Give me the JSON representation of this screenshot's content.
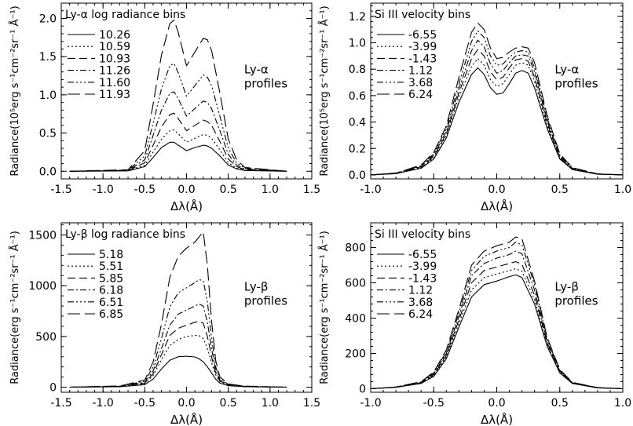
{
  "chart_data": [
    {
      "type": "line",
      "title": "Ly-α log radiance bins",
      "xlabel": "Δλ(Å)",
      "ylabel": "Radiance(10⁵erg s⁻¹cm⁻²sr⁻¹ Å⁻¹)",
      "annotation": [
        "Ly-α",
        "profiles"
      ],
      "xlim": [
        -1.5,
        1.5
      ],
      "ylim": [
        -0.1,
        2.2
      ],
      "xticks": [
        -1.5,
        -1.0,
        -0.5,
        0.0,
        0.5,
        1.0,
        1.5
      ],
      "xtick_labels": [
        "-1.5",
        "-1.0",
        "-0.5",
        "0.0",
        "0.5",
        "1.0",
        "1.5"
      ],
      "yticks": [
        0.0,
        0.5,
        1.0,
        1.5,
        2.0
      ],
      "ytick_labels": [
        "0.0",
        "0.5",
        "1.0",
        "1.5",
        "2.0"
      ],
      "legend": "top-left",
      "x": [
        -1.4,
        -0.7,
        -0.5,
        -0.4,
        -0.3,
        -0.2,
        -0.15,
        -0.1,
        0.0,
        0.1,
        0.2,
        0.25,
        0.3,
        0.4,
        0.5,
        0.6,
        0.7,
        1.2
      ],
      "series": [
        {
          "name": "10.26",
          "values": [
            0.0,
            0.005,
            0.06,
            0.18,
            0.31,
            0.38,
            0.38,
            0.34,
            0.27,
            0.31,
            0.34,
            0.33,
            0.3,
            0.2,
            0.08,
            0.03,
            0.01,
            0.0
          ]
        },
        {
          "name": "10.59",
          "values": [
            0.0,
            0.008,
            0.08,
            0.25,
            0.42,
            0.53,
            0.54,
            0.49,
            0.38,
            0.43,
            0.48,
            0.47,
            0.43,
            0.28,
            0.11,
            0.04,
            0.015,
            0.0
          ]
        },
        {
          "name": "10.93",
          "values": [
            0.0,
            0.01,
            0.11,
            0.34,
            0.58,
            0.74,
            0.76,
            0.69,
            0.53,
            0.6,
            0.67,
            0.65,
            0.6,
            0.39,
            0.16,
            0.06,
            0.02,
            0.0
          ]
        },
        {
          "name": "11.26",
          "values": [
            0.0,
            0.012,
            0.15,
            0.47,
            0.8,
            1.02,
            1.04,
            0.95,
            0.72,
            0.82,
            0.92,
            0.9,
            0.82,
            0.53,
            0.22,
            0.08,
            0.03,
            0.0
          ]
        },
        {
          "name": "11.60",
          "values": [
            0.0,
            0.016,
            0.2,
            0.63,
            1.08,
            1.38,
            1.41,
            1.29,
            0.98,
            1.12,
            1.26,
            1.23,
            1.12,
            0.72,
            0.3,
            0.11,
            0.04,
            0.0
          ]
        },
        {
          "name": "11.93",
          "values": [
            0.0,
            0.02,
            0.27,
            0.88,
            1.52,
            1.93,
            1.98,
            1.82,
            1.38,
            1.56,
            1.74,
            1.72,
            1.58,
            1.02,
            0.42,
            0.15,
            0.05,
            0.0
          ]
        }
      ]
    },
    {
      "type": "line",
      "title": "Si III velocity bins",
      "xlabel": "Δλ(Å)",
      "ylabel": "Radiance(10⁵erg s⁻¹cm⁻²sr⁻¹ Å⁻¹)",
      "annotation": [
        "Ly-α",
        "profiles"
      ],
      "xlim": [
        -1.0,
        1.0
      ],
      "ylim": [
        -0.03,
        1.3
      ],
      "xticks": [
        -1.0,
        -0.5,
        0.0,
        0.5,
        1.0
      ],
      "xtick_labels": [
        "-1.0",
        "-0.5",
        "0.0",
        "0.5",
        "1.0"
      ],
      "yticks": [
        0.0,
        0.2,
        0.4,
        0.6,
        0.8,
        1.0,
        1.2
      ],
      "ytick_labels": [
        "0.0",
        "0.2",
        "0.4",
        "0.6",
        "0.8",
        "1.0",
        "1.2"
      ],
      "legend": "top-left",
      "x": [
        -1.0,
        -0.8,
        -0.6,
        -0.5,
        -0.4,
        -0.3,
        -0.2,
        -0.15,
        -0.1,
        -0.05,
        0.0,
        0.05,
        0.1,
        0.15,
        0.2,
        0.25,
        0.3,
        0.4,
        0.5,
        0.6,
        0.8,
        1.0
      ],
      "series": [
        {
          "name": "-6.55",
          "values": [
            0.0,
            0.01,
            0.05,
            0.12,
            0.28,
            0.55,
            0.76,
            0.81,
            0.76,
            0.66,
            0.61,
            0.62,
            0.69,
            0.77,
            0.79,
            0.77,
            0.66,
            0.35,
            0.12,
            0.04,
            0.005,
            0.0
          ]
        },
        {
          "name": "-3.99",
          "values": [
            0.0,
            0.01,
            0.055,
            0.13,
            0.3,
            0.59,
            0.82,
            0.88,
            0.83,
            0.72,
            0.67,
            0.69,
            0.76,
            0.83,
            0.85,
            0.83,
            0.71,
            0.37,
            0.13,
            0.045,
            0.006,
            0.0
          ]
        },
        {
          "name": "-1.43",
          "values": [
            0.0,
            0.011,
            0.06,
            0.14,
            0.31,
            0.62,
            0.88,
            0.95,
            0.9,
            0.78,
            0.72,
            0.74,
            0.81,
            0.87,
            0.88,
            0.86,
            0.74,
            0.39,
            0.13,
            0.045,
            0.006,
            0.0
          ]
        },
        {
          "name": "1.12",
          "values": [
            0.0,
            0.012,
            0.065,
            0.15,
            0.33,
            0.65,
            0.94,
            1.02,
            0.97,
            0.84,
            0.77,
            0.79,
            0.85,
            0.9,
            0.91,
            0.9,
            0.78,
            0.41,
            0.14,
            0.05,
            0.007,
            0.0
          ]
        },
        {
          "name": "3.68",
          "values": [
            0.0,
            0.013,
            0.07,
            0.16,
            0.35,
            0.69,
            1.01,
            1.09,
            1.04,
            0.9,
            0.83,
            0.84,
            0.89,
            0.93,
            0.94,
            0.93,
            0.81,
            0.43,
            0.15,
            0.05,
            0.007,
            0.0
          ]
        },
        {
          "name": "6.24",
          "values": [
            0.0,
            0.014,
            0.075,
            0.17,
            0.37,
            0.74,
            1.08,
            1.15,
            1.1,
            0.96,
            0.88,
            0.89,
            0.93,
            0.96,
            0.97,
            0.96,
            0.85,
            0.45,
            0.16,
            0.055,
            0.008,
            0.0
          ]
        }
      ]
    },
    {
      "type": "line",
      "title": "Ly-β log radiance bins",
      "xlabel": "Δλ(Å)",
      "ylabel": "Radiance(erg s⁻¹cm⁻²sr⁻¹ Å⁻¹)",
      "annotation": [
        "Ly-β",
        "profiles"
      ],
      "xlim": [
        -1.5,
        1.5
      ],
      "ylim": [
        -50,
        1620
      ],
      "xticks": [
        -1.5,
        -1.0,
        -0.5,
        0.0,
        0.5,
        1.0,
        1.5
      ],
      "xtick_labels": [
        "-1.5",
        "-1.0",
        "-0.5",
        "0.0",
        "0.5",
        "1.0",
        "1.5"
      ],
      "yticks": [
        0,
        500,
        1000,
        1500
      ],
      "ytick_labels": [
        "0",
        "500",
        "1000",
        "1500"
      ],
      "legend": "top-left",
      "x": [
        -1.4,
        -0.8,
        -0.5,
        -0.4,
        -0.3,
        -0.2,
        -0.1,
        0.0,
        0.1,
        0.15,
        0.2,
        0.25,
        0.3,
        0.35,
        0.4,
        0.5,
        0.7,
        1.2
      ],
      "series": [
        {
          "name": "5.18",
          "values": [
            0,
            5,
            25,
            80,
            180,
            265,
            300,
            305,
            298,
            280,
            250,
            200,
            140,
            80,
            40,
            15,
            5,
            0
          ]
        },
        {
          "name": "5.51",
          "values": [
            0,
            6,
            35,
            115,
            270,
            410,
            470,
            500,
            510,
            510,
            480,
            380,
            240,
            120,
            55,
            20,
            6,
            0
          ]
        },
        {
          "name": "5.85",
          "values": [
            0,
            7,
            40,
            135,
            320,
            510,
            580,
            610,
            640,
            650,
            630,
            500,
            300,
            140,
            60,
            22,
            7,
            0
          ]
        },
        {
          "name": "6.18",
          "values": [
            0,
            8,
            48,
            160,
            380,
            610,
            720,
            760,
            800,
            820,
            800,
            640,
            380,
            170,
            70,
            25,
            8,
            0
          ]
        },
        {
          "name": "6.51",
          "values": [
            0,
            10,
            58,
            200,
            480,
            790,
            930,
            980,
            1030,
            1060,
            1050,
            840,
            480,
            200,
            80,
            28,
            9,
            0
          ]
        },
        {
          "name": "6.85",
          "values": [
            0,
            12,
            70,
            250,
            620,
            1080,
            1290,
            1370,
            1430,
            1480,
            1530,
            1200,
            650,
            260,
            100,
            32,
            10,
            0
          ]
        }
      ]
    },
    {
      "type": "line",
      "title": "Si III velocity bins",
      "xlabel": "Δλ(Å)",
      "ylabel": "Radiance(erg s⁻¹cm⁻²sr⁻¹ Å⁻¹)",
      "annotation": [
        "Ly-β",
        "profiles"
      ],
      "xlim": [
        -1.0,
        1.0
      ],
      "ylim": [
        -20,
        940
      ],
      "xticks": [
        -1.0,
        -0.5,
        0.0,
        0.5,
        1.0
      ],
      "xtick_labels": [
        "-1.0",
        "-0.5",
        "0.0",
        "0.5",
        "1.0"
      ],
      "yticks": [
        0,
        200,
        400,
        600,
        800
      ],
      "ytick_labels": [
        "0",
        "200",
        "400",
        "600",
        "800"
      ],
      "legend": "top-left",
      "x": [
        -1.0,
        -0.8,
        -0.6,
        -0.5,
        -0.4,
        -0.3,
        -0.2,
        -0.1,
        0.0,
        0.1,
        0.15,
        0.2,
        0.3,
        0.4,
        0.5,
        0.6,
        0.8,
        1.0
      ],
      "series": [
        {
          "name": "-6.55",
          "values": [
            0,
            8,
            30,
            70,
            170,
            350,
            520,
            590,
            610,
            635,
            645,
            630,
            480,
            240,
            90,
            30,
            5,
            0
          ]
        },
        {
          "name": "-3.99",
          "values": [
            0,
            8,
            32,
            75,
            180,
            370,
            560,
            630,
            650,
            670,
            680,
            665,
            505,
            250,
            95,
            32,
            5,
            0
          ]
        },
        {
          "name": "-1.43",
          "values": [
            0,
            9,
            34,
            80,
            190,
            390,
            600,
            670,
            690,
            710,
            720,
            705,
            530,
            260,
            98,
            33,
            6,
            0
          ]
        },
        {
          "name": "1.12",
          "values": [
            0,
            9,
            36,
            85,
            200,
            410,
            640,
            710,
            740,
            760,
            780,
            765,
            560,
            270,
            100,
            34,
            6,
            0
          ]
        },
        {
          "name": "3.68",
          "values": [
            0,
            10,
            38,
            90,
            210,
            430,
            670,
            750,
            780,
            800,
            830,
            815,
            590,
            280,
            105,
            35,
            6,
            0
          ]
        },
        {
          "name": "6.24",
          "values": [
            0,
            10,
            40,
            95,
            220,
            450,
            700,
            780,
            810,
            830,
            860,
            850,
            610,
            290,
            110,
            36,
            6,
            0
          ]
        }
      ]
    }
  ]
}
